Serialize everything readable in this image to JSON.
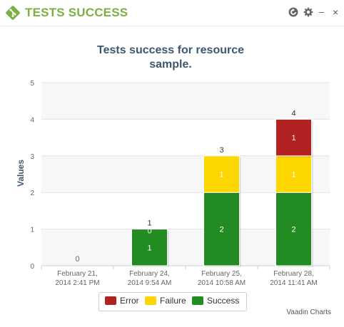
{
  "header": {
    "title": "TESTS SUCCESS",
    "icons": [
      "refresh-icon",
      "gear-icon",
      "minimize-icon",
      "close-icon"
    ],
    "minimize_glyph": "–",
    "close_glyph": "×",
    "title_color": "#7cb042"
  },
  "chart_data": {
    "type": "bar",
    "stacked": true,
    "title": "Tests success for resource sample.",
    "title_lines": [
      "Tests success for resource",
      "sample."
    ],
    "ylabel": "Values",
    "xlabel": "",
    "ylim": [
      0,
      5
    ],
    "yticks": [
      0,
      1,
      2,
      3,
      4,
      5
    ],
    "grid": true,
    "legend_position": "bottom",
    "categories": [
      [
        "February 21,",
        "2014 2:41 PM"
      ],
      [
        "February 24,",
        "2014 9:54 AM"
      ],
      [
        "February 25,",
        "2014 10:58 AM"
      ],
      [
        "February 28,",
        "2014 11:41 AM"
      ]
    ],
    "series": [
      {
        "name": "Success",
        "color": "#228b22",
        "values": [
          0,
          1,
          2,
          2
        ]
      },
      {
        "name": "Failure",
        "color": "#ffd700",
        "values": [
          0,
          0,
          1,
          1
        ]
      },
      {
        "name": "Error",
        "color": "#b22222",
        "values": [
          0,
          0,
          0,
          1
        ]
      }
    ],
    "totals": [
      0,
      1,
      3,
      4
    ]
  },
  "legend": {
    "items": [
      {
        "label": "Error",
        "color": "#b22222"
      },
      {
        "label": "Failure",
        "color": "#ffd700"
      },
      {
        "label": "Success",
        "color": "#228b22"
      }
    ]
  },
  "credits": "Vaadin Charts"
}
